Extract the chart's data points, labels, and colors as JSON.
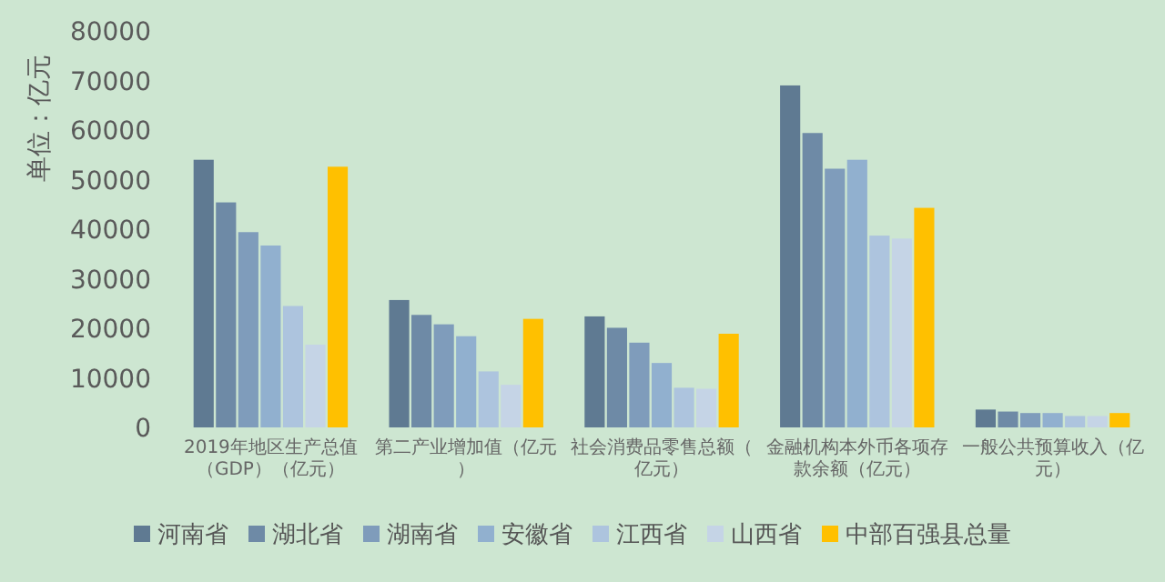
{
  "chart_data": {
    "type": "bar",
    "ylabel": "单位：亿元",
    "categories": [
      "2019年地区生产总值（GDP）（亿元）",
      "第二产业增加值（亿元）",
      "社会消费品零售总额（亿元）",
      "金融机构本外币各项存款余额（亿元）",
      "一般公共预算收入（亿元）"
    ],
    "series": [
      {
        "name": "河南省",
        "color": "#5f7a92",
        "values": [
          54000,
          25700,
          22400,
          69000,
          3600
        ]
      },
      {
        "name": "湖北省",
        "color": "#6e8aa6",
        "values": [
          45400,
          22700,
          20100,
          59400,
          3200
        ]
      },
      {
        "name": "湖南省",
        "color": "#7f9cbb",
        "values": [
          39400,
          20800,
          17100,
          52200,
          2900
        ]
      },
      {
        "name": "安徽省",
        "color": "#91b0cf",
        "values": [
          36700,
          18400,
          13000,
          54000,
          2900
        ]
      },
      {
        "name": "江西省",
        "color": "#adc4de",
        "values": [
          24500,
          11300,
          8000,
          38700,
          2300
        ]
      },
      {
        "name": "山西省",
        "color": "#c5d4e6",
        "values": [
          16700,
          8600,
          7800,
          38100,
          2300
        ]
      },
      {
        "name": "中部百强县总量",
        "color": "#ffc000",
        "values": [
          52600,
          21900,
          18900,
          44300,
          2900
        ]
      }
    ],
    "ylim": [
      0,
      80000
    ],
    "yticks": [
      0,
      10000,
      20000,
      30000,
      40000,
      50000,
      60000,
      70000,
      80000
    ],
    "grid": false,
    "legend": "bottom"
  }
}
